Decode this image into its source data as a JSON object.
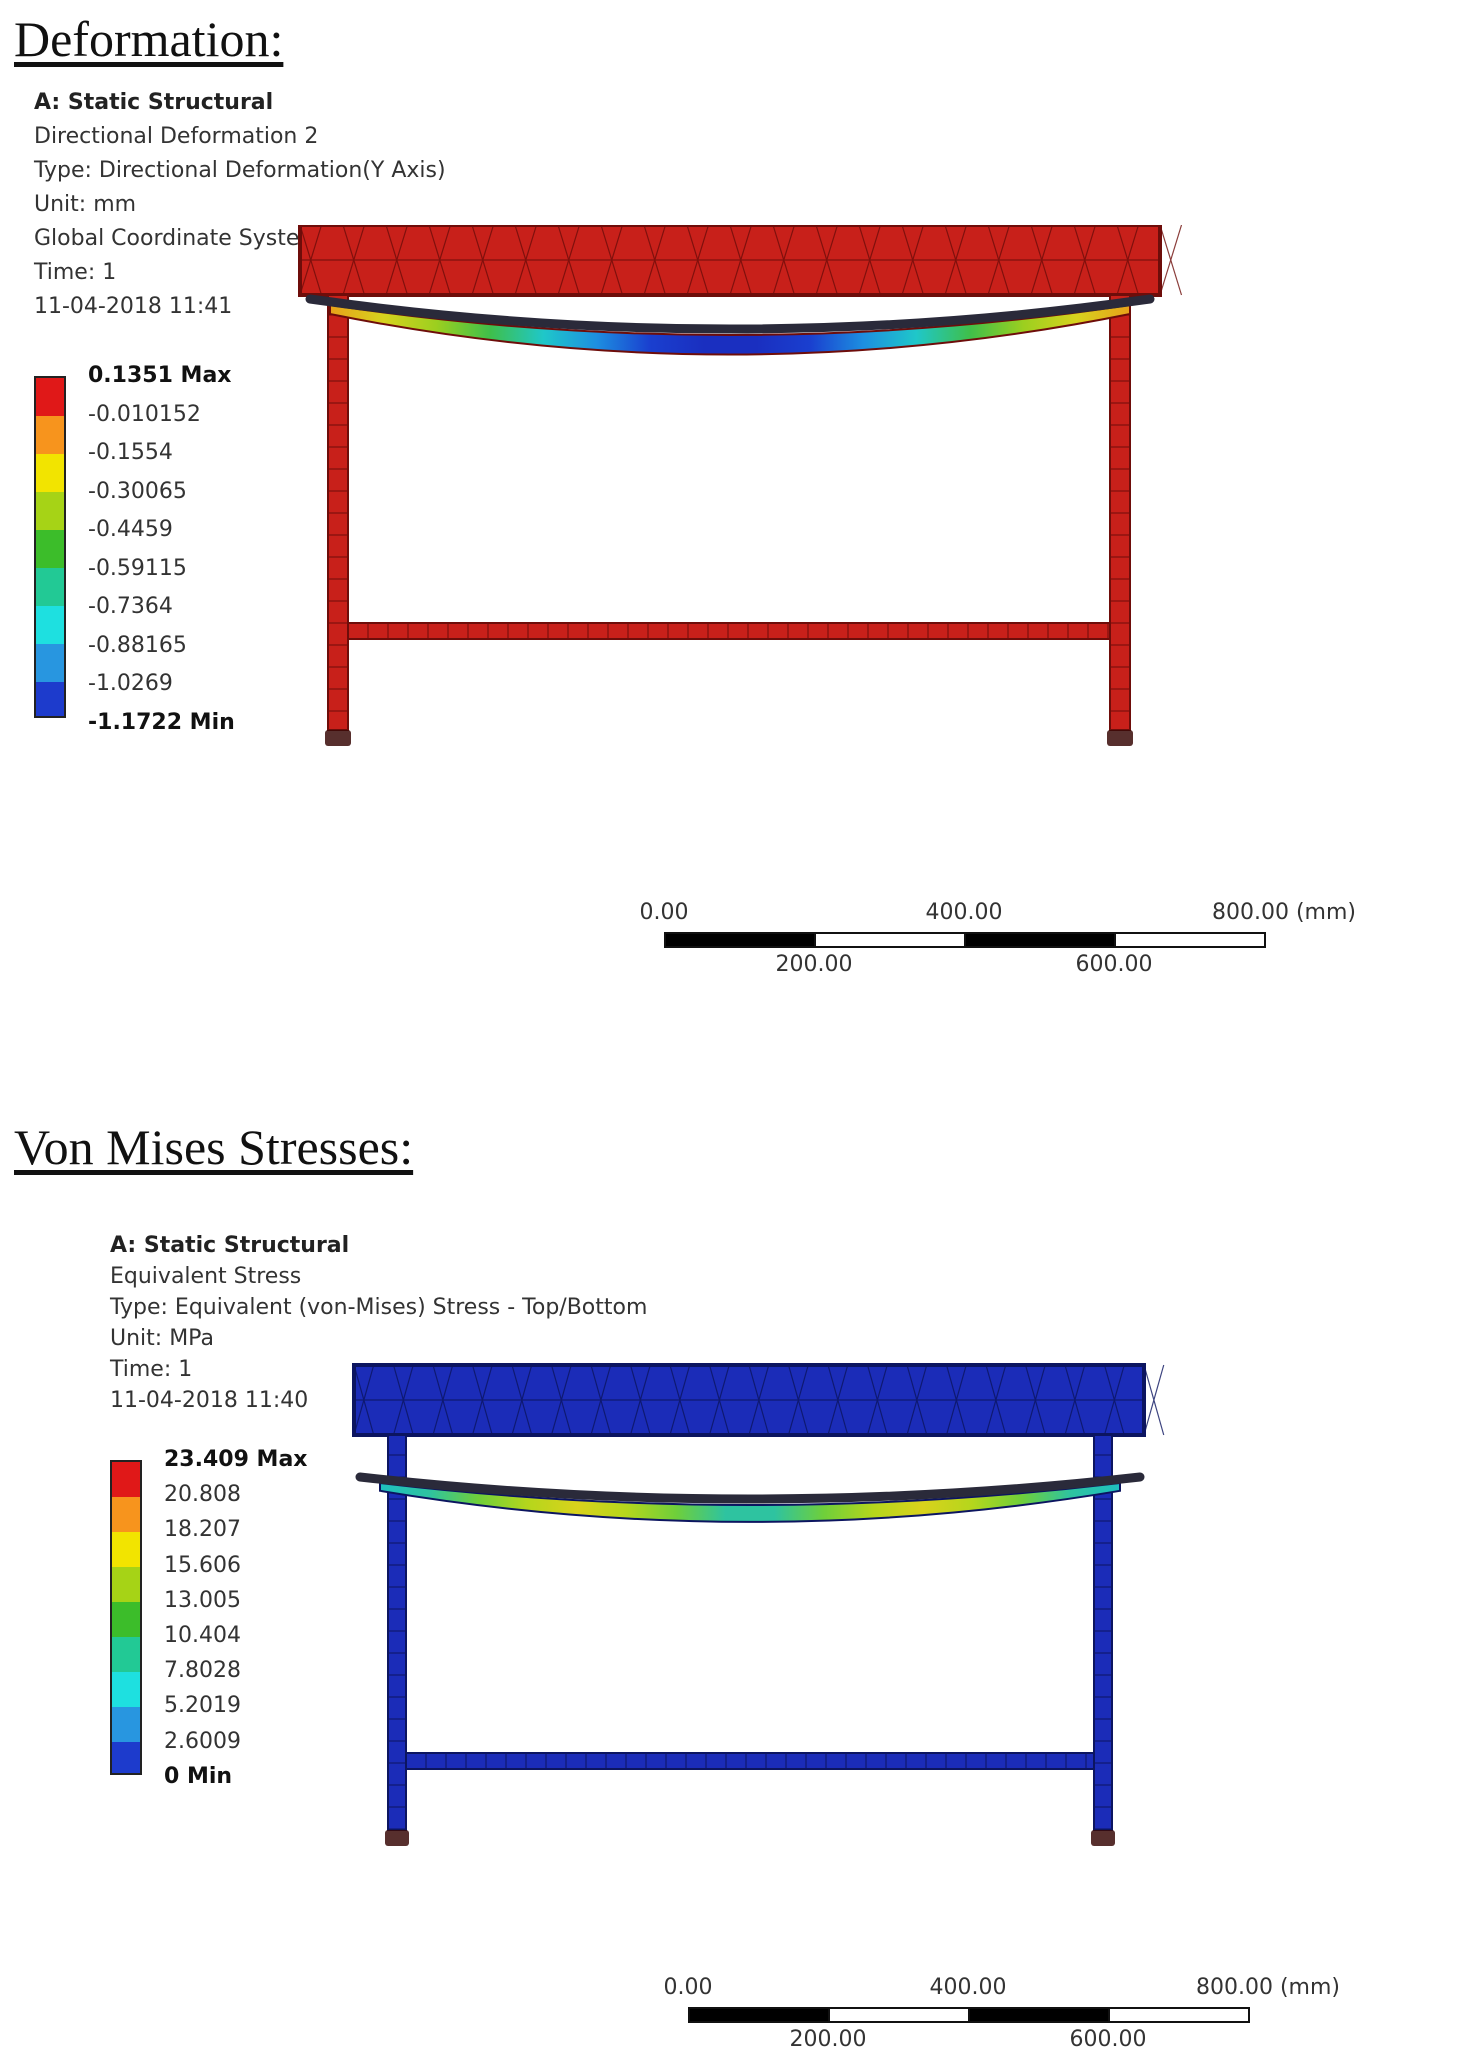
{
  "deformation": {
    "section_title": "Deformation:",
    "info": {
      "heading": "A: Static Structural",
      "lines": [
        "Directional Deformation 2",
        "Type: Directional Deformation(Y Axis)",
        "Unit: mm",
        "Global Coordinate Syste",
        "Time: 1",
        "11-04-2018 11:41"
      ]
    },
    "legend": {
      "labels": [
        "0.1351 Max",
        "-0.010152",
        "-0.1554",
        "-0.30065",
        "-0.4459",
        "-0.59115",
        "-0.7364",
        "-0.88165",
        "-1.0269",
        "-1.1722 Min"
      ],
      "colors": [
        "#e01818",
        "#f7941d",
        "#f2e400",
        "#a6d316",
        "#3cbd2a",
        "#22c995",
        "#1ee0e0",
        "#2896e0",
        "#1d3bcc"
      ]
    },
    "scale": {
      "ticks_top": [
        "0.00",
        "400.00",
        "800.00 (mm)"
      ],
      "ticks_bottom": [
        "200.00",
        "600.00"
      ]
    },
    "model_colors": {
      "frame": "#c8201a",
      "frame_edge": "#6e0d0a",
      "beam_gradient": [
        "#e8a21a",
        "#d7d21e",
        "#9ccf1f",
        "#3fbf4a",
        "#1fc7c9",
        "#1d8fe0",
        "#1a3fcf",
        "#1a2fc0"
      ]
    }
  },
  "stress": {
    "section_title": "Von Mises Stresses:",
    "info": {
      "heading": "A: Static Structural",
      "lines": [
        "Equivalent Stress",
        "Type: Equivalent (von-Mises) Stress - Top/Bottom",
        "Unit: MPa",
        "Time: 1",
        "11-04-2018 11:40"
      ]
    },
    "legend": {
      "labels": [
        "23.409 Max",
        "20.808",
        "18.207",
        "15.606",
        "13.005",
        "10.404",
        "7.8028",
        "5.2019",
        "2.6009",
        "0 Min"
      ],
      "colors": [
        "#e01818",
        "#f7941d",
        "#f2e400",
        "#a6d316",
        "#3cbd2a",
        "#22c995",
        "#1ee0e0",
        "#2896e0",
        "#1d3bcc"
      ]
    },
    "scale": {
      "ticks_top": [
        "0.00",
        "400.00",
        "800.00 (mm)"
      ],
      "ticks_bottom": [
        "200.00",
        "600.00"
      ]
    },
    "model_colors": {
      "frame": "#1b2cb8",
      "frame_edge": "#0c1560",
      "beam_gradient": [
        "#1fc0c0",
        "#2ec3a0",
        "#6fcf3a",
        "#b5d61c",
        "#d9d21c",
        "#b5d61c",
        "#6fcf3a",
        "#2ec3a0"
      ]
    }
  }
}
